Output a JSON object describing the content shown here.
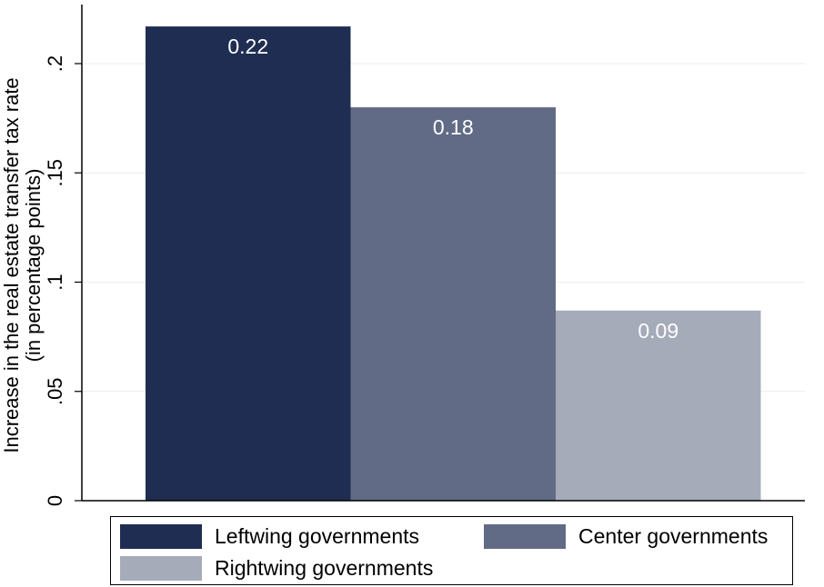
{
  "chart_data": {
    "type": "bar",
    "title": "",
    "xlabel": "",
    "ylabel": [
      "Increase in the real estate transfer tax rate",
      "(in percentage points)"
    ],
    "ylim": [
      0,
      0.22
    ],
    "yticks": [
      0,
      0.05,
      0.1,
      0.15,
      0.2
    ],
    "ytick_labels": [
      "0",
      ".05",
      ".1",
      ".15",
      ".2"
    ],
    "grid": true,
    "legend_position": "bottom",
    "series": [
      {
        "name": "Leftwing governments",
        "value": 0.217,
        "label": "0.22",
        "color": "#1f2d52",
        "label_color": "#ffffff"
      },
      {
        "name": "Center governments",
        "value": 0.18,
        "label": "0.18",
        "color": "#616b85",
        "label_color": "#ffffff"
      },
      {
        "name": "Rightwing governments",
        "value": 0.087,
        "label": "0.09",
        "color": "#a6abba",
        "label_color": "#ffffff"
      }
    ]
  },
  "legend": {
    "items": [
      {
        "label": "Leftwing governments",
        "color": "#1f2d52"
      },
      {
        "label": "Center governments",
        "color": "#616b85"
      },
      {
        "label": "Rightwing governments",
        "color": "#a6abba"
      }
    ]
  }
}
